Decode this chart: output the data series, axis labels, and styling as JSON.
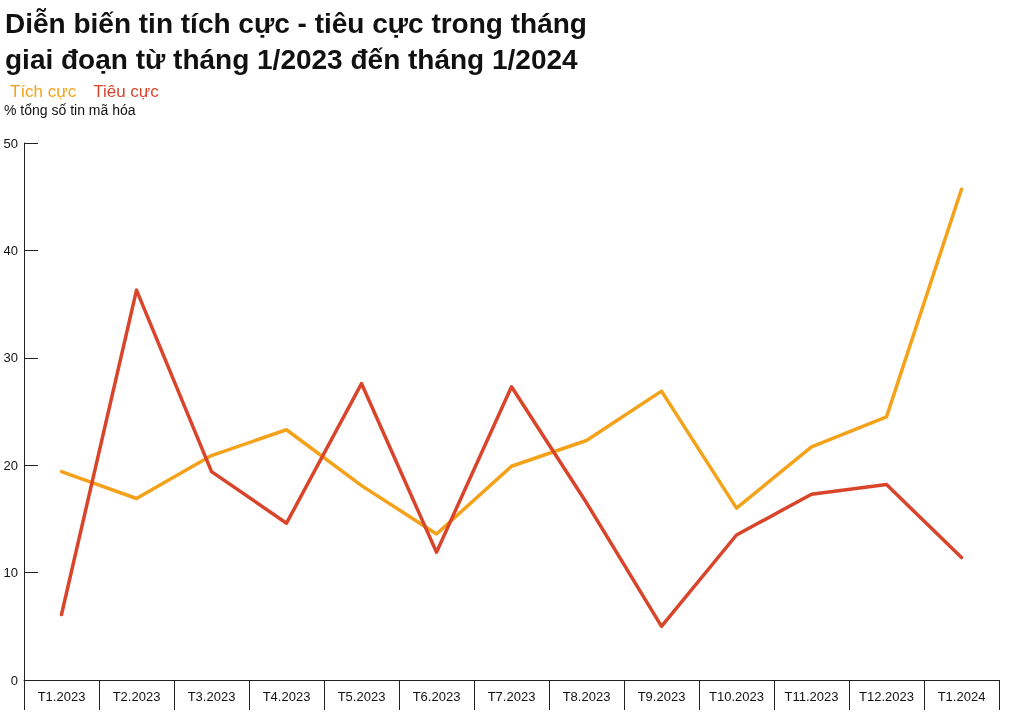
{
  "chart_data": {
    "type": "line",
    "title": "Diễn biến tin tích cực - tiêu cực trong tháng giai đoạn từ tháng 1/2023 đến tháng 1/2024",
    "ylabel": "% tổng số tin mã hóa",
    "categories": [
      "T1.2023",
      "T2.2023",
      "T3.2023",
      "T4.2023",
      "T5.2023",
      "T6.2023",
      "T7.2023",
      "T8.2023",
      "T9.2023",
      "T10.2023",
      "T11.2023",
      "T12.2023",
      "T1.2024"
    ],
    "series": [
      {
        "name": "Tích cực",
        "color": "#f5a21b",
        "values": [
          19.4,
          16.9,
          20.9,
          23.3,
          18.1,
          13.6,
          19.9,
          22.3,
          26.9,
          16.0,
          21.7,
          24.5,
          45.7
        ]
      },
      {
        "name": "Tiêu cực",
        "color": "#d9452b",
        "values": [
          6.1,
          36.3,
          19.4,
          14.6,
          27.6,
          11.9,
          27.3,
          16.5,
          5.0,
          13.5,
          17.3,
          18.2,
          11.4
        ]
      }
    ],
    "ylim": [
      0,
      50
    ],
    "yticks": [
      0,
      10,
      20,
      30,
      40,
      50
    ],
    "grid": false,
    "legend": "top left",
    "marker": "none",
    "line_style": "solid"
  }
}
